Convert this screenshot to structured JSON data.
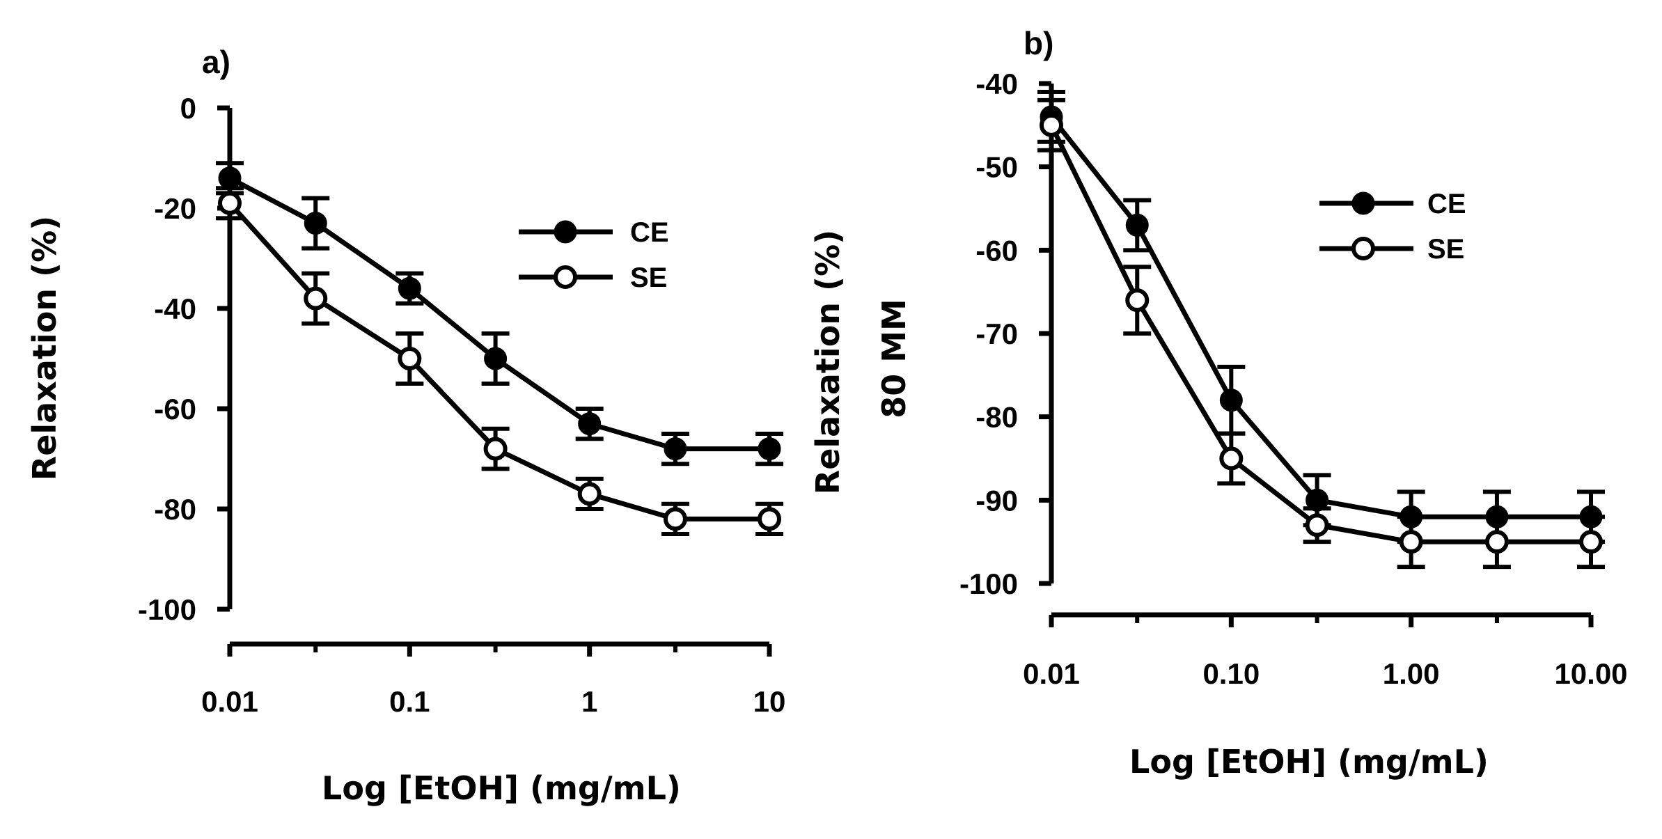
{
  "chart_data": [
    {
      "type": "line",
      "panel_label": "a)",
      "xscale": "log",
      "xlim": [
        0.01,
        10
      ],
      "x_ticks": [
        0.01,
        0.1,
        1,
        10
      ],
      "x_tick_labels": [
        "0.01",
        "0.1",
        "1",
        "10"
      ],
      "ylim": [
        -100,
        0
      ],
      "y_ticks": [
        0,
        -20,
        -40,
        -60,
        -80,
        -100
      ],
      "y_tick_labels": [
        "0",
        "-20",
        "-40",
        "-60",
        "-80",
        "-100"
      ],
      "xlabel": "Log [EtOH] (mg/mL)",
      "ylabel": "Relaxation (%)",
      "ylabel_line2": "",
      "legend_position": "top-right",
      "x": [
        0.01,
        0.03,
        0.1,
        0.3,
        1,
        3,
        10
      ],
      "series": [
        {
          "name": "CE",
          "marker": "filled-circle",
          "values": [
            -14,
            -23,
            -36,
            -50,
            -63,
            -68,
            -68
          ],
          "errors": [
            3,
            5,
            3,
            5,
            3,
            3,
            3
          ]
        },
        {
          "name": "SE",
          "marker": "open-circle",
          "values": [
            -19,
            -38,
            -50,
            -68,
            -77,
            -82,
            -82
          ],
          "errors": [
            3,
            5,
            5,
            4,
            3,
            3,
            3
          ]
        }
      ]
    },
    {
      "type": "line",
      "panel_label": "b)",
      "xscale": "log",
      "xlim": [
        0.01,
        10
      ],
      "x_ticks": [
        0.01,
        0.1,
        1,
        10
      ],
      "x_tick_labels": [
        "0.01",
        "0.10",
        "1.00",
        "10.00"
      ],
      "ylim": [
        -100,
        -40
      ],
      "y_ticks": [
        -40,
        -50,
        -60,
        -70,
        -80,
        -90,
        -100
      ],
      "y_tick_labels": [
        "-40",
        "-50",
        "-60",
        "-70",
        "-80",
        "-90",
        "-100"
      ],
      "xlabel": "Log [EtOH] (mg/mL)",
      "ylabel": "Relaxation (%)",
      "ylabel_line2": "80 MM",
      "legend_position": "top-right",
      "x": [
        0.01,
        0.03,
        0.1,
        0.3,
        1,
        3,
        10
      ],
      "series": [
        {
          "name": "CE",
          "marker": "filled-circle",
          "values": [
            -44,
            -57,
            -78,
            -90,
            -92,
            -92,
            -92
          ],
          "errors": [
            3,
            3,
            4,
            3,
            3,
            3,
            3
          ]
        },
        {
          "name": "SE",
          "marker": "open-circle",
          "values": [
            -45,
            -66,
            -85,
            -93,
            -95,
            -95,
            -95
          ],
          "errors": [
            3,
            4,
            3,
            2,
            3,
            3,
            3
          ]
        }
      ]
    }
  ]
}
